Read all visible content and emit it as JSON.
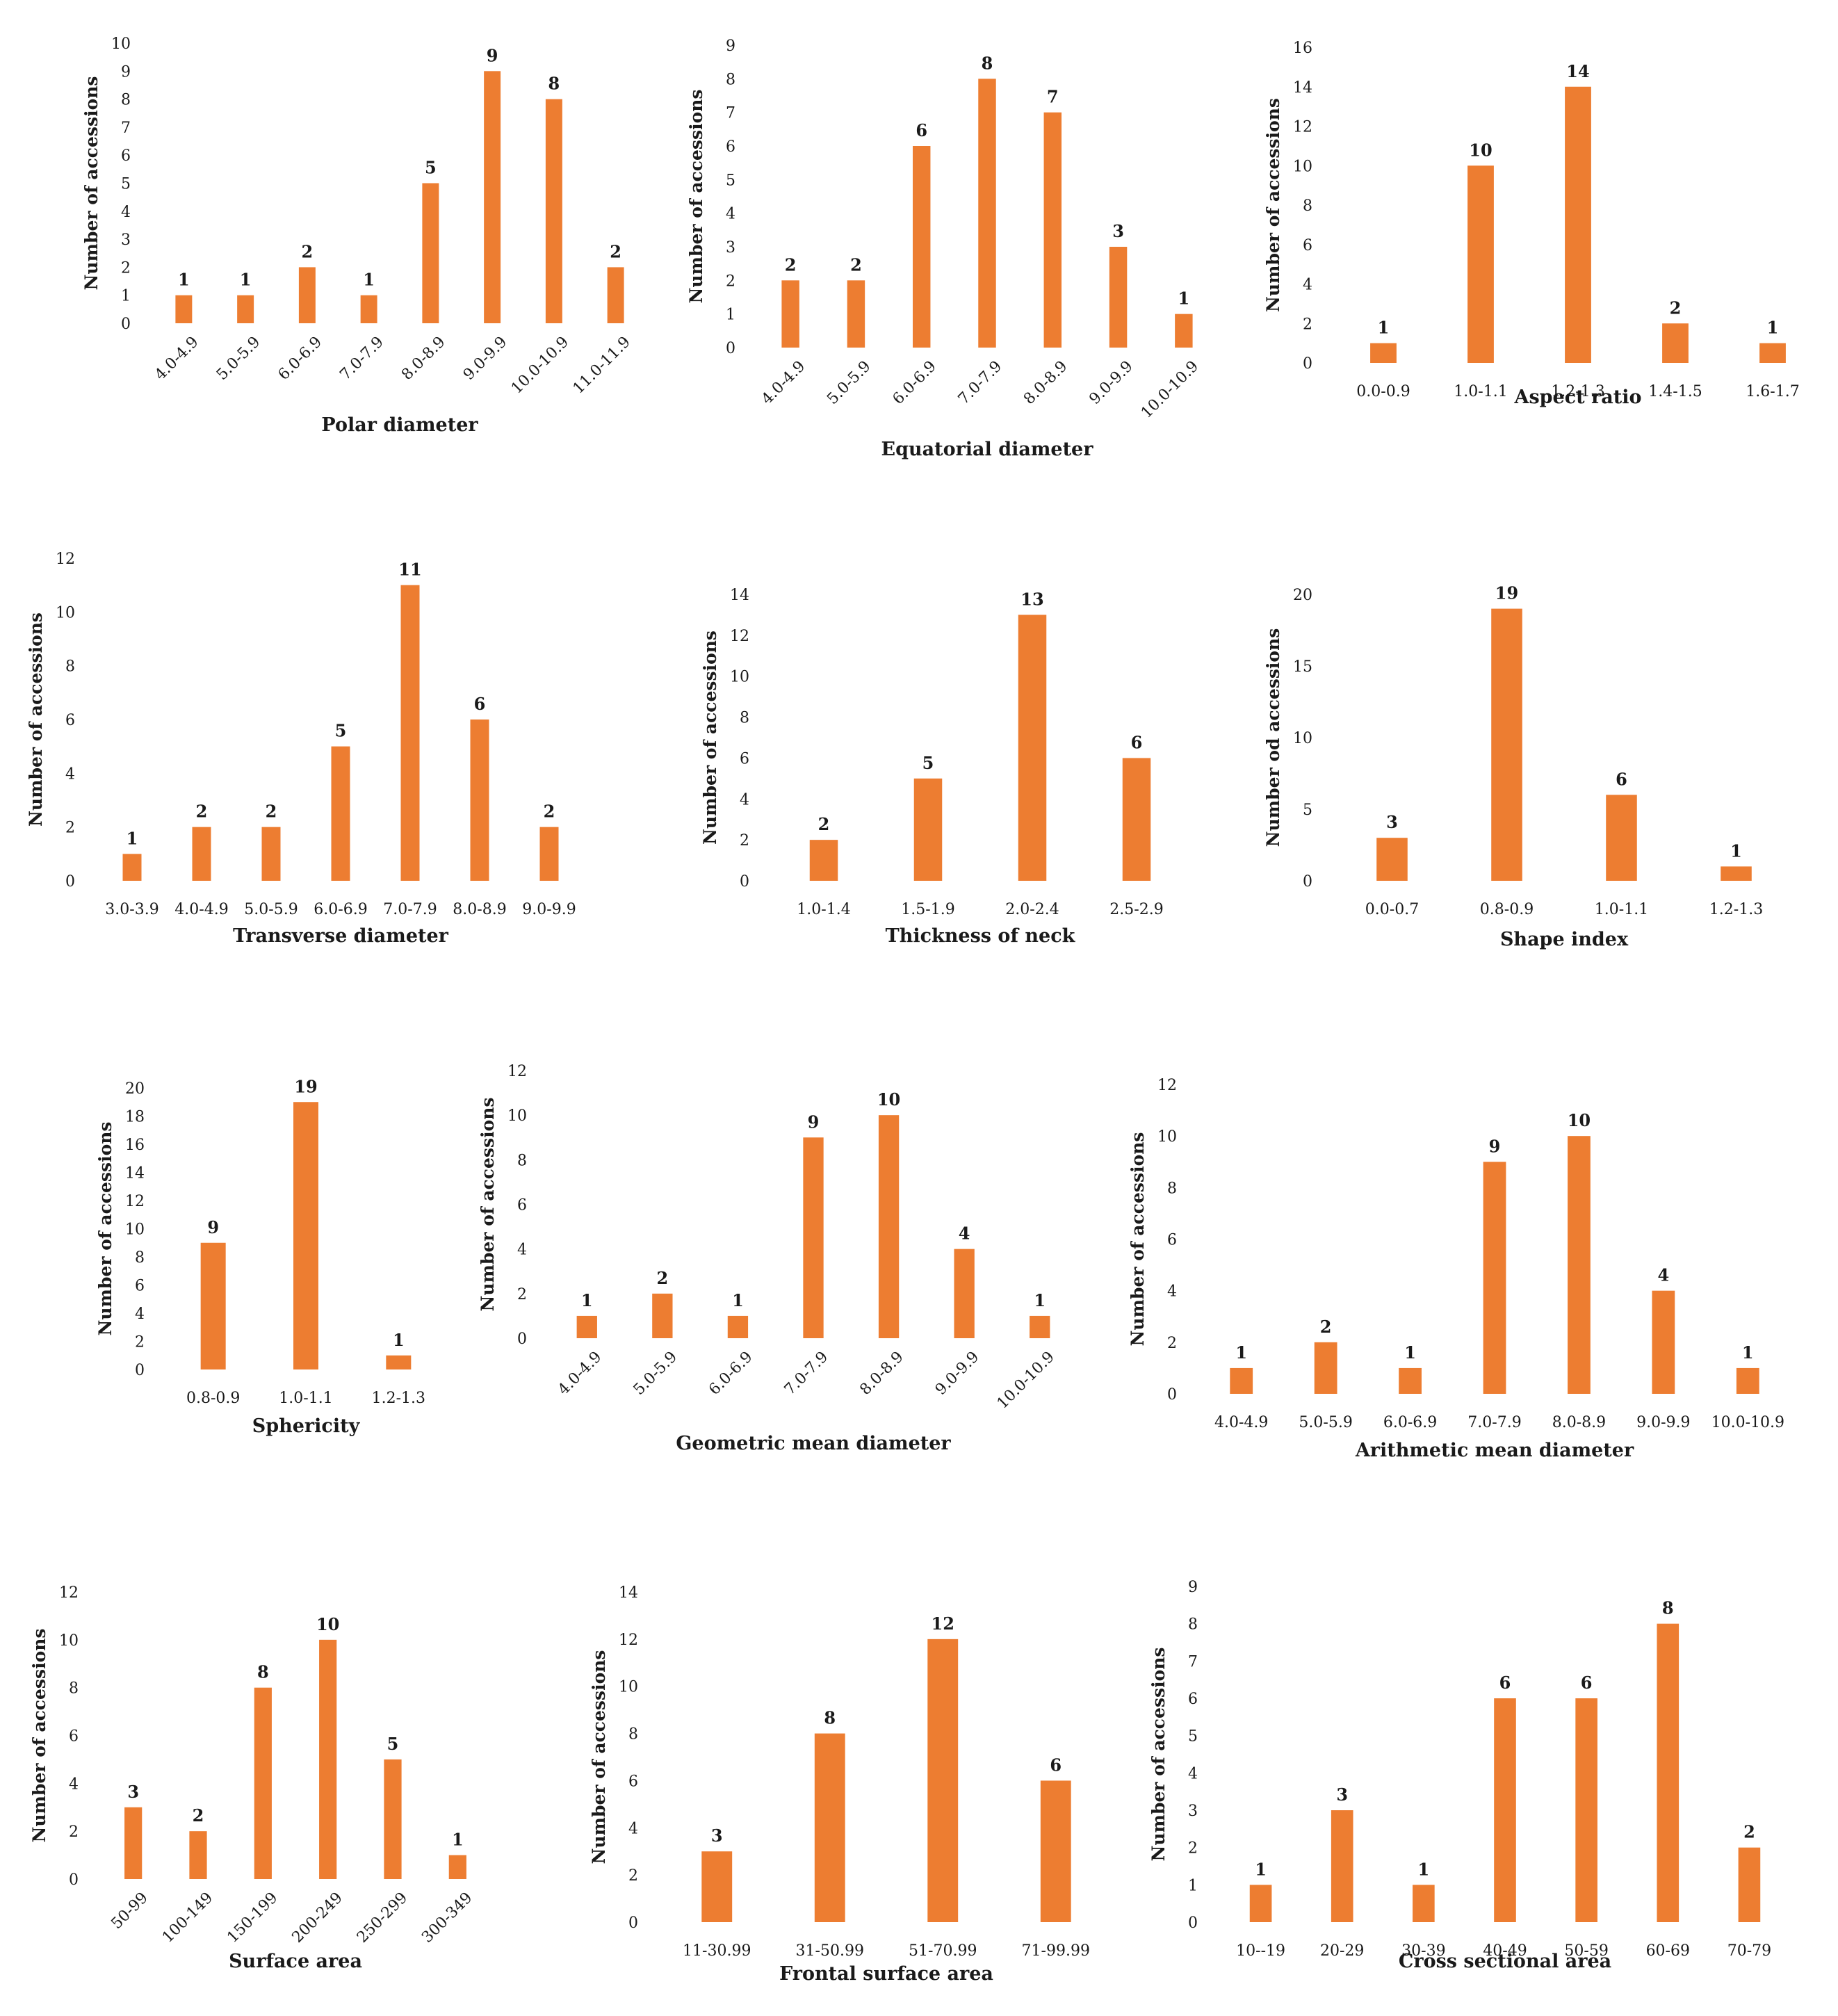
{
  "colors": {
    "bar": "#ED7D31",
    "text": "#1a1a1a"
  },
  "chart_data": [
    {
      "type": "bar",
      "xlabel": "Polar diameter",
      "ylabel": "Number of accessions",
      "categories": [
        "4.0-4.9",
        "5.0-5.9",
        "6.0-6.9",
        "7.0-7.9",
        "8.0-8.9",
        "9.0-9.9",
        "10.0-10.9",
        "11.0-11.9"
      ],
      "values": [
        1,
        1,
        2,
        1,
        5,
        9,
        8,
        2
      ],
      "ylim": [
        0,
        10
      ],
      "ytick_step": 1,
      "rotated": true
    },
    {
      "type": "bar",
      "xlabel": "Equatorial diameter",
      "ylabel": "Number of accessions",
      "categories": [
        "4.0-4.9",
        "5.0-5.9",
        "6.0-6.9",
        "7.0-7.9",
        "8.0-8.9",
        "9.0-9.9",
        "10.0-10.9"
      ],
      "values": [
        2,
        2,
        6,
        8,
        7,
        3,
        1
      ],
      "ylim": [
        0,
        9
      ],
      "ytick_step": 1,
      "rotated": true
    },
    {
      "type": "bar",
      "xlabel": "Aspect ratio",
      "ylabel": "Number of accessions",
      "categories": [
        "0.0-0.9",
        "1.0-1.1",
        "1.2-1.3",
        "1.4-1.5",
        "1.6-1.7"
      ],
      "values": [
        1,
        10,
        14,
        2,
        1
      ],
      "ylim": [
        0,
        16
      ],
      "ytick_step": 2,
      "rotated": false
    },
    {
      "type": "bar",
      "xlabel": "Transverse diameter",
      "ylabel": "Number of accessions",
      "categories": [
        "3.0-3.9",
        "4.0-4.9",
        "5.0-5.9",
        "6.0-6.9",
        "7.0-7.9",
        "8.0-8.9",
        "9.0-9.9"
      ],
      "values": [
        1,
        2,
        2,
        5,
        11,
        6,
        2
      ],
      "ylim": [
        0,
        12
      ],
      "ytick_step": 2,
      "rotated": false
    },
    {
      "type": "bar",
      "xlabel": "Thickness of neck",
      "ylabel": "Number of accessions",
      "categories": [
        "1.0-1.4",
        "1.5-1.9",
        "2.0-2.4",
        "2.5-2.9"
      ],
      "values": [
        2,
        5,
        13,
        6
      ],
      "ylim": [
        0,
        14
      ],
      "ytick_step": 2,
      "rotated": false
    },
    {
      "type": "bar",
      "xlabel": "Shape index",
      "ylabel": "Number od accessions",
      "categories": [
        "0.0-0.7",
        "0.8-0.9",
        "1.0-1.1",
        "1.2-1.3"
      ],
      "values": [
        3,
        19,
        6,
        1
      ],
      "ylim": [
        0,
        20
      ],
      "ytick_step": 5,
      "rotated": false
    },
    {
      "type": "bar",
      "xlabel": "Sphericity",
      "ylabel": "Number of accessions",
      "categories": [
        "0.8-0.9",
        "1.0-1.1",
        "1.2-1.3"
      ],
      "values": [
        9,
        19,
        1
      ],
      "ylim": [
        0,
        20
      ],
      "ytick_step": 2,
      "rotated": false
    },
    {
      "type": "bar",
      "xlabel": "Geometric mean diameter",
      "ylabel": "Number of accessions",
      "categories": [
        "4.0-4.9",
        "5.0-5.9",
        "6.0-6.9",
        "7.0-7.9",
        "8.0-8.9",
        "9.0-9.9",
        "10.0-10.9"
      ],
      "values": [
        1,
        2,
        1,
        9,
        10,
        4,
        1
      ],
      "ylim": [
        0,
        12
      ],
      "ytick_step": 2,
      "rotated": true
    },
    {
      "type": "bar",
      "xlabel": "Arithmetic mean diameter",
      "ylabel": "Number of accessions",
      "categories": [
        "4.0-4.9",
        "5.0-5.9",
        "6.0-6.9",
        "7.0-7.9",
        "8.0-8.9",
        "9.0-9.9",
        "10.0-10.9"
      ],
      "values": [
        1,
        2,
        1,
        9,
        10,
        4,
        1
      ],
      "ylim": [
        0,
        12
      ],
      "ytick_step": 2,
      "rotated": false
    },
    {
      "type": "bar",
      "xlabel": "Surface area",
      "ylabel": "Number of accessions",
      "categories": [
        "50-99",
        "100-149",
        "150-199",
        "200-249",
        "250-299",
        "300-349"
      ],
      "values": [
        3,
        2,
        8,
        10,
        5,
        1
      ],
      "ylim": [
        0,
        12
      ],
      "ytick_step": 2,
      "rotated": true
    },
    {
      "type": "bar",
      "xlabel": "Frontal surface area",
      "ylabel": "Number of accessions",
      "categories": [
        "11-30.99",
        "31-50.99",
        "51-70.99",
        "71-99.99"
      ],
      "values": [
        3,
        8,
        12,
        6
      ],
      "ylim": [
        0,
        14
      ],
      "ytick_step": 2,
      "rotated": false
    },
    {
      "type": "bar",
      "xlabel": "Cross sectional area",
      "ylabel": "Number of accessions",
      "categories": [
        "10--19",
        "20-29",
        "30-39",
        "40-49",
        "50-59",
        "60-69",
        "70-79"
      ],
      "values": [
        1,
        3,
        1,
        6,
        6,
        8,
        2
      ],
      "ylim": [
        0,
        9
      ],
      "ytick_step": 1,
      "rotated": false
    }
  ]
}
